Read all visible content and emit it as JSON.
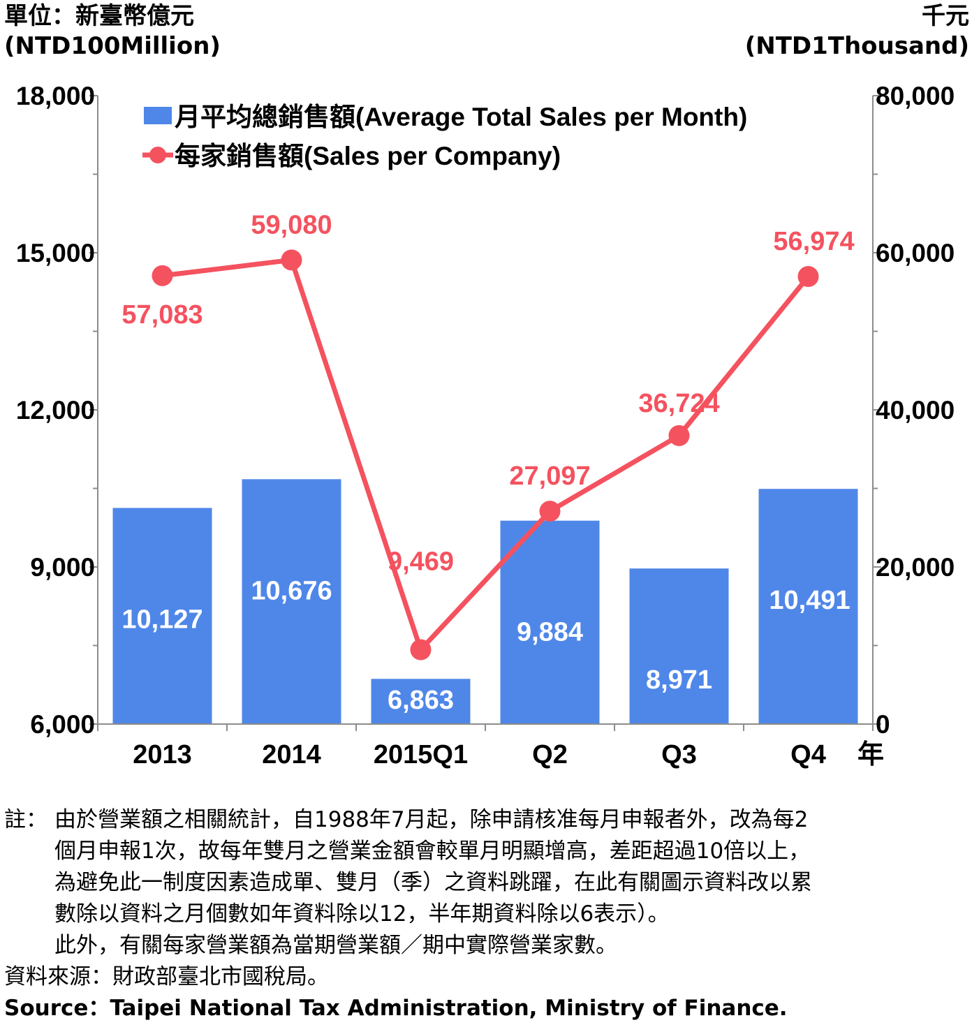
{
  "units": {
    "left_zh": "單位：新臺幣億元",
    "left_en": "(NTD100Million)",
    "right_zh": "千元",
    "right_en": "(NTD1Thousand)"
  },
  "chart_data": {
    "type": "bar+line",
    "categories": [
      "2013",
      "2014",
      "2015Q1",
      "Q2",
      "Q3",
      "Q4"
    ],
    "x_unit_label": "年",
    "y_left": {
      "min": 6000,
      "max": 18000,
      "ticks": [
        "6,000",
        "9,000",
        "12,000",
        "15,000",
        "18,000"
      ]
    },
    "y_right": {
      "min": 0,
      "max": 80000,
      "ticks": [
        "0",
        "20,000",
        "40,000",
        "60,000",
        "80,000"
      ]
    },
    "series": [
      {
        "name": "月平均總銷售額(Average Total Sales per Month)",
        "type": "bar",
        "axis": "left",
        "color": "#4f87e8",
        "values": [
          10127,
          10676,
          6863,
          9884,
          8971,
          10491
        ],
        "labels": [
          "10,127",
          "10,676",
          "6,863",
          "9,884",
          "8,971",
          "10,491"
        ]
      },
      {
        "name": "每家銷售額(Sales per Company)",
        "type": "line",
        "axis": "right",
        "color": "#f4525f",
        "values": [
          57083,
          59080,
          9469,
          27097,
          36724,
          56974
        ],
        "labels": [
          "57,083",
          "59,080",
          "9,469",
          "27,097",
          "36,724",
          "56,974"
        ]
      }
    ],
    "legend_position": "top-left",
    "grid": false
  },
  "notes": {
    "prefix": "註：",
    "lines": [
      "由於營業額之相關統計，自1988年7月起，除申請核准每月申報者外，改為每2",
      "個月申報1次，故每年雙月之營業金額會較單月明顯增高，差距超過10倍以上，",
      "為避免此一制度因素造成單、雙月（季）之資料跳躍，在此有關圖示資料改以累",
      "數除以資料之月個數如年資料除以12，半年期資料除以6表示）。",
      "此外，有關每家營業額為當期營業額／期中實際營業家數。"
    ]
  },
  "source": {
    "zh": "資料來源：財政部臺北市國稅局。",
    "en": "Source：Taipei National Tax Administration, Ministry of Finance."
  }
}
